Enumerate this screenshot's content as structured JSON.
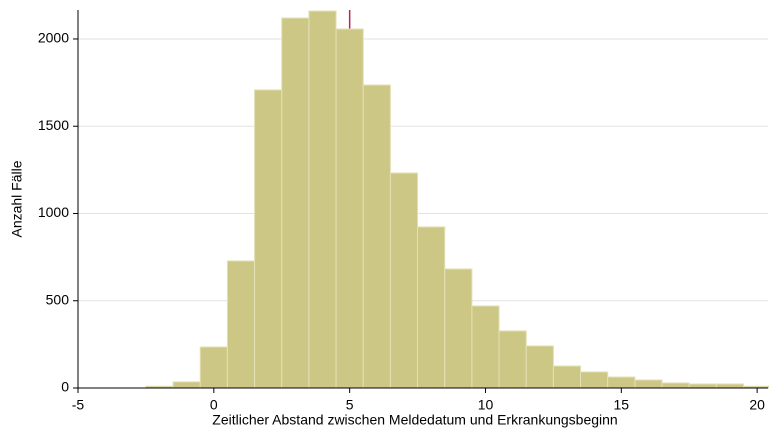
{
  "chart_data": {
    "type": "histogram",
    "x_label": "Zeitlicher Abstand zwischen Meldedatum und Erkrankungsbeginn",
    "y_label": "Anzahl Fälle",
    "bins": [
      -2.5,
      -1.5,
      -0.5,
      0.5,
      1.5,
      2.5,
      3.5,
      4.5,
      5.5,
      6.5,
      7.5,
      8.5,
      9.5,
      10.5,
      11.5,
      12.5,
      13.5,
      14.5,
      15.5,
      16.5,
      17.5,
      18.5,
      19.5,
      20.5
    ],
    "values": [
      10,
      35,
      235,
      728,
      1708,
      2120,
      2160,
      2057,
      1736,
      1232,
      923,
      682,
      470,
      327,
      241,
      126,
      92,
      63,
      46,
      29,
      23,
      23,
      10
    ],
    "color": "#cdc785",
    "edgecolor": "#e3e0b5",
    "vline": 5,
    "vline_color": "#b5245a",
    "xlim": [
      -5,
      20.4
    ],
    "xticks": [
      -5,
      0,
      5,
      10,
      15,
      20
    ],
    "ylim": [
      0,
      2166
    ],
    "yticks": [
      0,
      500,
      1000,
      1500,
      2000
    ],
    "grid": true
  }
}
